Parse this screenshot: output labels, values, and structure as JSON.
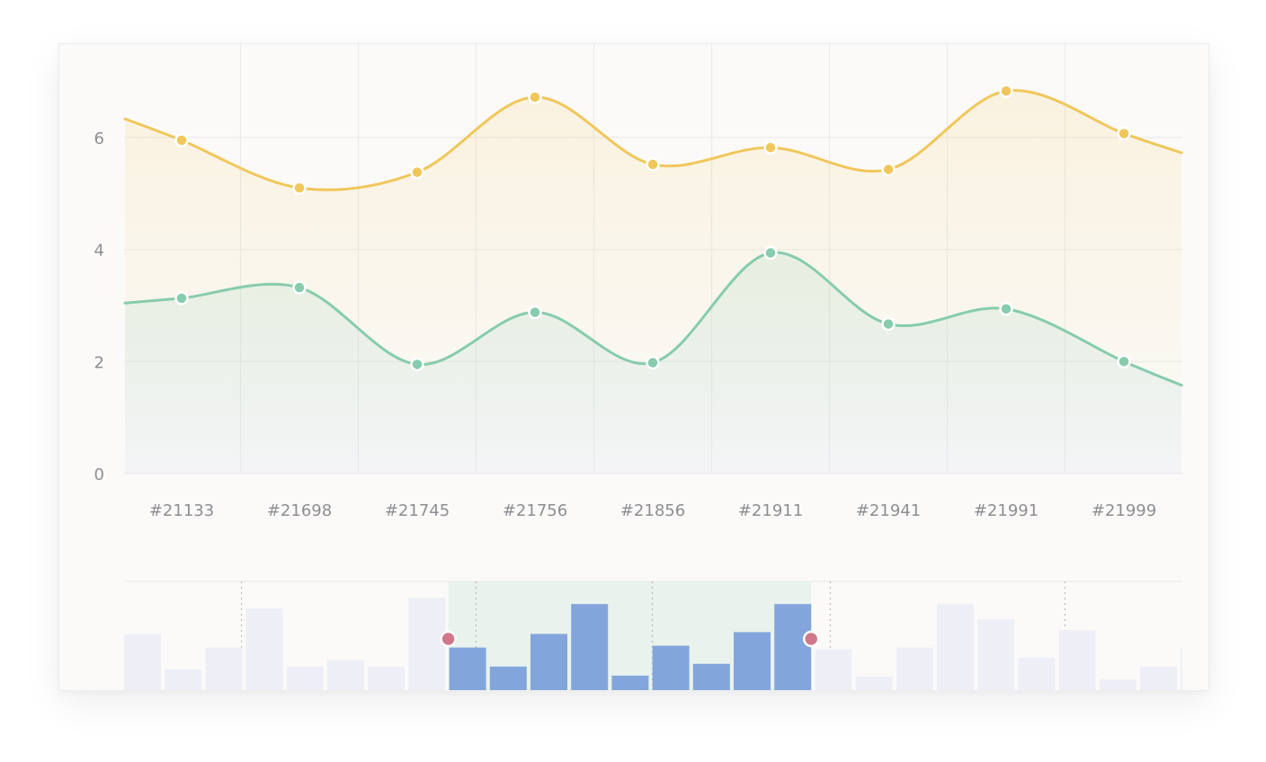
{
  "colors": {
    "series_yellow": "#f1c75b",
    "series_green": "#86ccad",
    "bar_selected": "#82a6dc",
    "bar_unselected": "#eeeff6",
    "selection_band": "#e9f2ec",
    "handle": "#d0788a",
    "grid": "#ecebea"
  },
  "chart_data": [
    {
      "type": "line",
      "categories": [
        "#21133",
        "#21698",
        "#21745",
        "#21756",
        "#21856",
        "#21911",
        "#21941",
        "#21991",
        "#21999"
      ],
      "series": [
        {
          "color": "yellow",
          "values": [
            5.95,
            5.1,
            5.38,
            6.72,
            5.52,
            5.82,
            5.43,
            6.83,
            6.07
          ]
        },
        {
          "color": "green",
          "values": [
            3.13,
            3.32,
            1.95,
            2.88,
            1.98,
            3.94,
            2.67,
            2.94,
            2.0
          ]
        }
      ],
      "yticks": [
        0,
        2,
        4,
        6
      ],
      "ylim": [
        0,
        7.5
      ],
      "smooth": true,
      "area_fill": true,
      "grid": true
    },
    {
      "type": "bar",
      "role": "navigator-brush",
      "values": [
        62,
        23,
        47,
        90,
        26,
        33,
        26,
        102,
        47,
        26,
        62,
        95,
        16,
        49,
        29,
        64,
        95,
        45,
        15,
        47,
        95,
        78,
        36,
        66,
        12,
        26,
        47
      ],
      "selected_range": [
        8,
        16
      ],
      "ylim": [
        0,
        120
      ]
    }
  ]
}
